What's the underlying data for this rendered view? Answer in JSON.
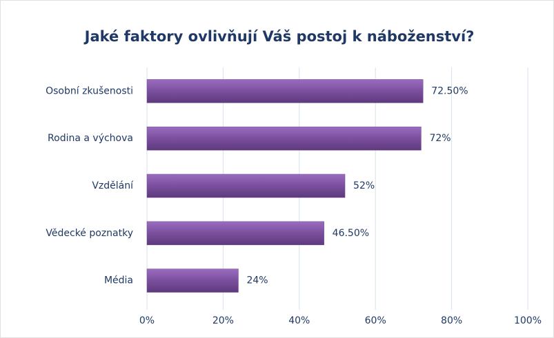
{
  "chart_data": {
    "type": "bar",
    "orientation": "horizontal",
    "title": "Jaké faktory ovlivňují Váš postoj k náboženství?",
    "categories": [
      "Osobní zkušenosti",
      "Rodina a výchova",
      "Vzdělání",
      "Vědecké poznatky",
      "Média"
    ],
    "values": [
      72.5,
      72,
      52,
      46.5,
      24
    ],
    "value_labels": [
      "72.50%",
      "72%",
      "52%",
      "46.50%",
      "24%"
    ],
    "color": "#7b4f9e",
    "xlim": [
      0,
      100
    ],
    "xticks": [
      {
        "value": 0,
        "label": "0%"
      },
      {
        "value": 20,
        "label": "20%"
      },
      {
        "value": 40,
        "label": "40%"
      },
      {
        "value": 60,
        "label": "60%"
      },
      {
        "value": 80,
        "label": "80%"
      },
      {
        "value": 100,
        "label": "100%"
      }
    ],
    "grid": true
  }
}
